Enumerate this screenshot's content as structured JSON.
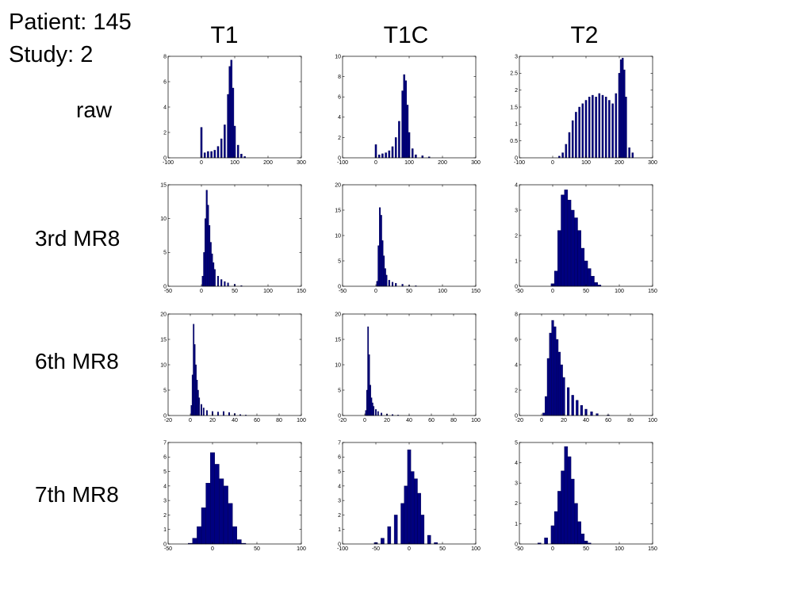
{
  "header": {
    "patient": "Patient: 145",
    "study": "Study: 2"
  },
  "columns": [
    "T1",
    "T1C",
    "T2"
  ],
  "rows": [
    "raw",
    "3rd MR8",
    "6th MR8",
    "7th MR8"
  ],
  "colors": {
    "bar": "#000080",
    "axis": "#000000",
    "background": "#ffffff"
  },
  "chart_data": [
    {
      "type": "bar",
      "row": "raw",
      "column": "T1",
      "xlim": [
        -100,
        300
      ],
      "ylim": [
        0,
        8
      ],
      "xticks": [
        "-100",
        "0",
        "100",
        "200",
        "300"
      ],
      "yticks": [
        "0",
        "2",
        "4",
        "6",
        "8"
      ],
      "x": [
        0,
        10,
        20,
        30,
        40,
        50,
        60,
        70,
        80,
        85,
        90,
        95,
        100,
        110,
        120,
        130
      ],
      "values": [
        2.4,
        0.4,
        0.5,
        0.5,
        0.6,
        0.9,
        1.5,
        2.6,
        5.0,
        7.2,
        7.7,
        5.5,
        2.5,
        1.0,
        0.3,
        0.1
      ]
    },
    {
      "type": "bar",
      "row": "raw",
      "column": "T1C",
      "xlim": [
        -100,
        300
      ],
      "ylim": [
        0,
        10
      ],
      "xticks": [
        "-100",
        "0",
        "100",
        "200",
        "300"
      ],
      "yticks": [
        "0",
        "2",
        "4",
        "6",
        "8",
        "10"
      ],
      "x": [
        0,
        10,
        20,
        30,
        40,
        50,
        60,
        70,
        80,
        85,
        90,
        95,
        100,
        110,
        120,
        140,
        160
      ],
      "values": [
        1.3,
        0.3,
        0.4,
        0.5,
        0.7,
        1.1,
        2.0,
        3.6,
        6.6,
        8.2,
        7.6,
        5.2,
        2.5,
        0.9,
        0.3,
        0.2,
        0.1
      ]
    },
    {
      "type": "bar",
      "row": "raw",
      "column": "T2",
      "xlim": [
        -100,
        300
      ],
      "ylim": [
        0,
        3
      ],
      "xticks": [
        "-100",
        "0",
        "100",
        "200",
        "300"
      ],
      "yticks": [
        "0",
        "0.5",
        "1",
        "1.5",
        "2",
        "2.5",
        "3"
      ],
      "x": [
        20,
        30,
        40,
        50,
        60,
        70,
        80,
        90,
        100,
        110,
        120,
        130,
        140,
        150,
        160,
        170,
        180,
        190,
        200,
        205,
        210,
        215,
        220,
        230,
        240
      ],
      "values": [
        0.05,
        0.15,
        0.4,
        0.75,
        1.1,
        1.35,
        1.5,
        1.6,
        1.7,
        1.8,
        1.85,
        1.8,
        1.9,
        1.85,
        1.8,
        1.7,
        1.6,
        1.9,
        2.5,
        2.9,
        2.95,
        2.6,
        1.8,
        0.3,
        0.15
      ]
    },
    {
      "type": "bar",
      "row": "3rd MR8",
      "column": "T1",
      "xlim": [
        -50,
        150
      ],
      "ylim": [
        0,
        15
      ],
      "xticks": [
        "-50",
        "0",
        "50",
        "100",
        "150"
      ],
      "yticks": [
        "0",
        "5",
        "10",
        "15"
      ],
      "x": [
        2,
        4,
        6,
        8,
        10,
        12,
        14,
        16,
        18,
        20,
        25,
        30,
        35,
        40,
        50,
        60
      ],
      "values": [
        1.5,
        5,
        10,
        14.2,
        12,
        9,
        6.5,
        4.8,
        3.5,
        2.5,
        1.5,
        1,
        0.7,
        0.5,
        0.3,
        0.1
      ]
    },
    {
      "type": "bar",
      "row": "3rd MR8",
      "column": "T1C",
      "xlim": [
        -50,
        150
      ],
      "ylim": [
        0,
        20
      ],
      "xticks": [
        "-50",
        "0",
        "50",
        "100",
        "150"
      ],
      "yticks": [
        "0",
        "5",
        "10",
        "15",
        "20"
      ],
      "x": [
        2,
        4,
        6,
        8,
        10,
        12,
        14,
        16,
        20,
        25,
        30,
        40,
        50,
        60
      ],
      "values": [
        1,
        8,
        15.5,
        14,
        9,
        6,
        3.5,
        2.2,
        1.2,
        0.8,
        0.6,
        0.4,
        0.2,
        0.1
      ]
    },
    {
      "type": "bar",
      "row": "3rd MR8",
      "column": "T2",
      "xlim": [
        -50,
        150
      ],
      "ylim": [
        0,
        4
      ],
      "xticks": [
        "-50",
        "0",
        "50",
        "100",
        "150"
      ],
      "yticks": [
        "0",
        "1",
        "2",
        "3",
        "4"
      ],
      "x": [
        0,
        5,
        10,
        15,
        20,
        25,
        30,
        35,
        40,
        45,
        50,
        55,
        60,
        65,
        70
      ],
      "values": [
        0.1,
        0.6,
        2.2,
        3.6,
        3.8,
        3.4,
        3.0,
        2.7,
        2.2,
        1.5,
        1.0,
        0.7,
        0.4,
        0.15,
        0.05
      ]
    },
    {
      "type": "bar",
      "row": "6th MR8",
      "column": "T1",
      "xlim": [
        -20,
        100
      ],
      "ylim": [
        0,
        20
      ],
      "xticks": [
        "-20",
        "0",
        "20",
        "40",
        "60",
        "80",
        "100"
      ],
      "yticks": [
        "0",
        "5",
        "10",
        "15",
        "20"
      ],
      "x": [
        1,
        2,
        3,
        4,
        5,
        6,
        7,
        8,
        10,
        12,
        15,
        20,
        25,
        30,
        35,
        40,
        45,
        50
      ],
      "values": [
        2,
        8,
        18,
        14,
        10,
        7,
        5,
        3.5,
        2.2,
        1.5,
        1,
        0.8,
        0.7,
        0.8,
        0.6,
        0.4,
        0.2,
        0.1
      ]
    },
    {
      "type": "bar",
      "row": "6th MR8",
      "column": "T1C",
      "xlim": [
        -20,
        100
      ],
      "ylim": [
        0,
        20
      ],
      "xticks": [
        "-20",
        "0",
        "20",
        "40",
        "60",
        "80",
        "100"
      ],
      "yticks": [
        "0",
        "5",
        "10",
        "15",
        "20"
      ],
      "x": [
        1,
        2,
        3,
        4,
        5,
        6,
        7,
        8,
        10,
        12,
        15,
        20,
        25,
        30,
        40
      ],
      "values": [
        1,
        5,
        17.5,
        12,
        6,
        3.5,
        2.5,
        1.8,
        1.2,
        0.8,
        0.5,
        0.3,
        0.2,
        0.1,
        0.05
      ]
    },
    {
      "type": "bar",
      "row": "6th MR8",
      "column": "T2",
      "xlim": [
        -20,
        100
      ],
      "ylim": [
        0,
        8
      ],
      "xticks": [
        "-20",
        "0",
        "20",
        "40",
        "60",
        "80",
        "100"
      ],
      "yticks": [
        "0",
        "2",
        "4",
        "6",
        "8"
      ],
      "x": [
        2,
        4,
        6,
        8,
        10,
        12,
        14,
        16,
        18,
        20,
        24,
        28,
        32,
        36,
        40,
        45,
        50,
        60
      ],
      "values": [
        0.2,
        1.5,
        4.5,
        6.5,
        7.5,
        7.0,
        6.0,
        5.0,
        4.0,
        3.0,
        2.2,
        1.6,
        1.2,
        0.8,
        0.5,
        0.3,
        0.15,
        0.05
      ]
    },
    {
      "type": "bar",
      "row": "7th MR8",
      "column": "T1",
      "xlim": [
        -50,
        100
      ],
      "ylim": [
        0,
        7
      ],
      "xticks": [
        "-50",
        "0",
        "50",
        "100"
      ],
      "yticks": [
        "0",
        "1",
        "2",
        "3",
        "4",
        "5",
        "6",
        "7"
      ],
      "x": [
        -25,
        -20,
        -15,
        -10,
        -5,
        0,
        5,
        10,
        15,
        20,
        25,
        30,
        35
      ],
      "values": [
        0.05,
        0.4,
        1.2,
        2.5,
        4.2,
        6.3,
        5.5,
        4.5,
        4.0,
        2.8,
        1.2,
        0.3,
        0.05
      ]
    },
    {
      "type": "bar",
      "row": "7th MR8",
      "column": "T1C",
      "xlim": [
        -100,
        100
      ],
      "ylim": [
        0,
        7
      ],
      "xticks": [
        "-100",
        "-50",
        "0",
        "50",
        "100"
      ],
      "yticks": [
        "0",
        "1",
        "2",
        "3",
        "4",
        "5",
        "6",
        "7"
      ],
      "x": [
        -50,
        -40,
        -30,
        -20,
        -10,
        -5,
        0,
        5,
        10,
        15,
        20,
        30,
        40
      ],
      "values": [
        0.1,
        0.4,
        1.2,
        2.0,
        2.8,
        4.0,
        6.5,
        5.0,
        4.5,
        3.5,
        2.0,
        0.6,
        0.1
      ]
    },
    {
      "type": "bar",
      "row": "7th MR8",
      "column": "T2",
      "xlim": [
        -50,
        150
      ],
      "ylim": [
        0,
        5
      ],
      "xticks": [
        "-50",
        "0",
        "50",
        "100",
        "150"
      ],
      "yticks": [
        "0",
        "1",
        "2",
        "3",
        "4",
        "5"
      ],
      "x": [
        -20,
        -10,
        0,
        5,
        10,
        15,
        20,
        25,
        30,
        35,
        40,
        45,
        50,
        55
      ],
      "values": [
        0.05,
        0.3,
        0.9,
        1.6,
        2.6,
        3.6,
        4.8,
        4.3,
        3.2,
        2.0,
        1.1,
        0.5,
        0.15,
        0.05
      ]
    }
  ]
}
